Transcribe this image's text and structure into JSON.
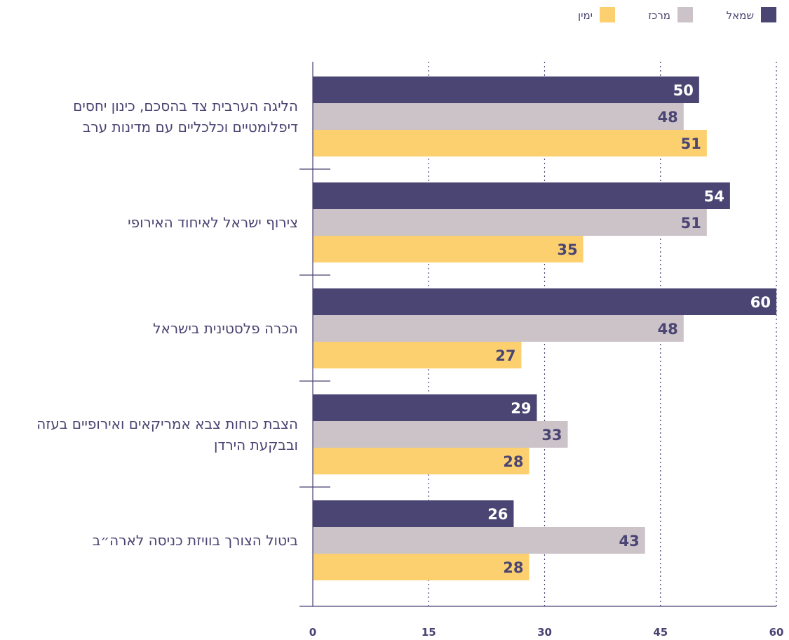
{
  "chart_data": {
    "type": "bar",
    "orientation": "horizontal",
    "categories": [
      [
        "הליגה הערבית צד בהסכם, כינון יחסים",
        "דיפלומטיים וכלכליים עם מדינות ערב"
      ],
      [
        "צירוף ישראל לאיחוד האירופי"
      ],
      [
        "הכרה פלסטינית בישראל"
      ],
      [
        "הצבת כוחות צבא אמריקאים ואירופיים בעזה",
        "ובבקעת הירדן"
      ],
      [
        "ביטול הצורך בוויזת כניסה לארה״ב"
      ]
    ],
    "series": [
      {
        "name": "שמאל",
        "color": "#4b4574",
        "label_color": "#ffffff",
        "values": [
          50,
          54,
          60,
          29,
          26
        ]
      },
      {
        "name": "מרכז",
        "color": "#cbc3c8",
        "label_color": "#4b4574",
        "values": [
          48,
          51,
          48,
          33,
          43
        ]
      },
      {
        "name": "ימין",
        "color": "#fcd06f",
        "label_color": "#4b4574",
        "values": [
          51,
          35,
          27,
          28,
          28
        ]
      }
    ],
    "xlim": [
      0,
      60
    ],
    "xticks": [
      0,
      15,
      30,
      45,
      60
    ],
    "grid": true,
    "legend": "top-right",
    "title": "",
    "xlabel": "",
    "ylabel": ""
  }
}
